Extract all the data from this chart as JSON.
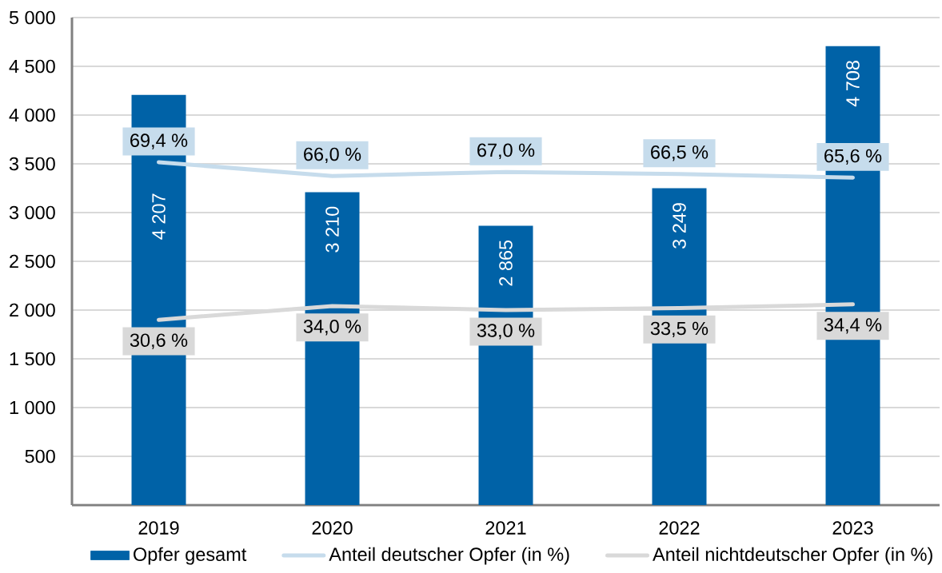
{
  "chart_data": {
    "type": "bar",
    "categories": [
      "2019",
      "2020",
      "2021",
      "2022",
      "2023"
    ],
    "series": [
      {
        "name": "Opfer gesamt",
        "color": "#0062a7",
        "values": [
          4207,
          3210,
          2865,
          3249,
          4708
        ],
        "value_labels": [
          "4 207",
          "3 210",
          "2 865",
          "3 249",
          "4 708"
        ]
      },
      {
        "name": "Anteil deutscher Opfer (in %)",
        "type": "line",
        "axis": "y2",
        "color": "#c6dcec",
        "values": [
          69.4,
          66.0,
          67.0,
          66.5,
          65.6
        ],
        "value_labels": [
          "69,4 %",
          "66,0 %",
          "67,0 %",
          "66,5 %",
          "65,6 %"
        ]
      },
      {
        "name": "Anteil nichtdeutscher Opfer (in %)",
        "type": "line",
        "axis": "y2",
        "color": "#d9d9d9",
        "values": [
          30.6,
          34.0,
          33.0,
          33.5,
          34.4
        ],
        "value_labels": [
          "30,6 %",
          "34,0 %",
          "33,0 %",
          "33,5 %",
          "34,4 %"
        ]
      }
    ],
    "ylim": [
      0,
      5000
    ],
    "yticks": [
      500,
      {
        "value": 1000,
        "label": "1 000"
      },
      {
        "value": 1500,
        "label": "1 500"
      },
      {
        "value": 2000,
        "label": "2 000"
      },
      {
        "value": 2500,
        "label": "2 500"
      },
      {
        "value": 3000,
        "label": "3 000"
      },
      {
        "value": 3500,
        "label": "3 500"
      },
      {
        "value": 4000,
        "label": "4 000"
      },
      {
        "value": 4500,
        "label": "4 500"
      },
      {
        "value": 5000,
        "label": "5 000"
      }
    ],
    "y2lim": [
      -15,
      105
    ],
    "grid": "y",
    "legend": "bottom",
    "marker": "none"
  }
}
